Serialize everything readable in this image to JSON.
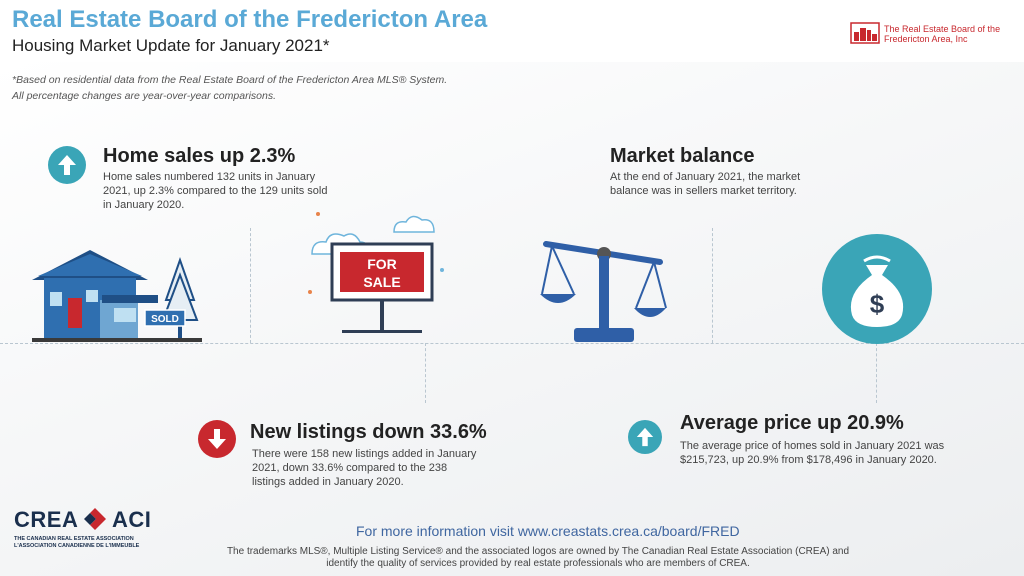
{
  "header": {
    "title": "Real Estate Board of the Fredericton Area",
    "subtitle": "Housing Market Update for January 2021*",
    "logo_text": "The Real Estate Board of the Fredericton Area, Inc"
  },
  "notes": [
    "*Based on residential data from the Real Estate Board of the Fredericton Area MLS® System.",
    "All percentage changes are year-over-year comparisons."
  ],
  "sections": {
    "home_sales": {
      "heading": "Home sales up 2.3%",
      "body": "Home sales numbered 132 units in January 2021, up 2.3% compared to the 129 units sold in January 2020.",
      "icon": "arrow-up-icon",
      "icon_color": "#3aa5b7"
    },
    "market_balance": {
      "heading": "Market balance",
      "body": "At the end of January 2021, the market balance was in sellers market territory.",
      "icon": "scale-icon",
      "icon_color": "#2f5fa7"
    },
    "new_listings": {
      "heading": "New listings down 33.6%",
      "body": "There were 158 new listings added in January 2021, down 33.6% compared to the 238 listings added in January 2020.",
      "icon": "arrow-down-icon",
      "icon_color": "#c8282e"
    },
    "average_price": {
      "heading": "Average price up 20.9%",
      "body": "The average price of homes sold in January 2021 was $215,723, up 20.9% from $178,496 in January 2020.",
      "icon": "arrow-up-icon",
      "icon_color": "#3aa5b7"
    }
  },
  "illustrations": {
    "sold_sign": "SOLD",
    "for_sale_line1": "FOR",
    "for_sale_line2": "SALE",
    "money_bag_symbol": "$"
  },
  "footer": {
    "link_text": "For more information visit www.creastats.crea.ca/board/FRED",
    "trademark": "The trademarks MLS®, Multiple Listing Service® and the associated logos are owned by The Canadian Real Estate Association (CREA) and identify the quality of services provided by real estate professionals who are members of CREA.",
    "crea_left": "CREA",
    "crea_right": "ACI",
    "crea_sub1": "THE CANADIAN REAL ESTATE ASSOCIATION",
    "crea_sub2": "L'ASSOCIATION CANADIENNE DE L'IMMEUBLE"
  },
  "colors": {
    "title": "#5aa9d6",
    "teal": "#3aa5b7",
    "red": "#c8282e",
    "navy": "#2f5fa7"
  }
}
